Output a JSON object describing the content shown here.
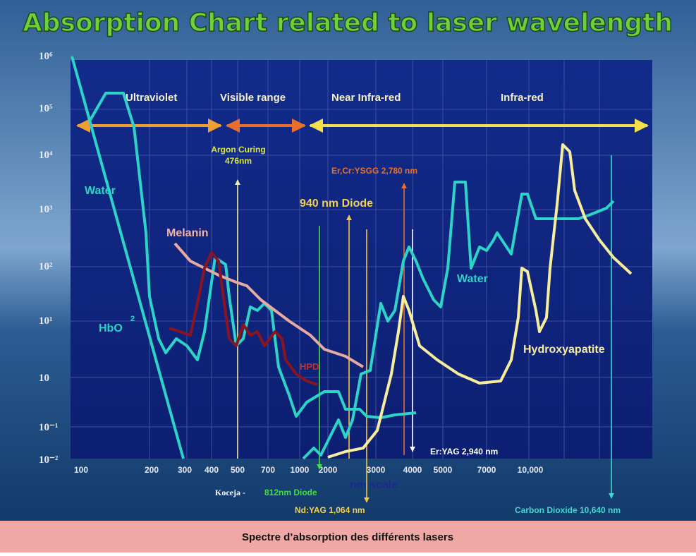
{
  "title": "Absorption Chart related to laser wavelength",
  "y_axis": {
    "labels": [
      "10⁶",
      "10⁵",
      "10⁴",
      "10³",
      "10²",
      "10¹",
      "10",
      "10⁻¹",
      "10⁻²"
    ]
  },
  "x_axis": {
    "labels": [
      "100",
      "200",
      "300",
      "400",
      "500",
      "700",
      "1000",
      "2000",
      "3000",
      "4000",
      "5000",
      "7000",
      "10,000"
    ],
    "unit": "nm scale"
  },
  "regions": [
    "Ultraviolet",
    "Visible range",
    "Near Infra-red",
    "Infra-red"
  ],
  "curves": {
    "water_uv": "Water",
    "hbo": "HbO",
    "hbo_sub": "2",
    "melanin": "Melanin",
    "hpd": "HPD",
    "water_ir": "Water",
    "hydroxyapatite": "Hydroxyapatite"
  },
  "lasers": {
    "argon": "Argon Curing",
    "argon_nm": "476nm",
    "ercr": "Er,Cr:YSGG 2,780 nm",
    "diode940": "940 nm Diode",
    "eryag": "Er:YAG 2,940 nm",
    "koceja": "Koceja -",
    "diode812": "812nm Diode",
    "ndyag": "Nd:YAG 1,064 nm",
    "co2": "Carbon Dioxide 10,640 nm"
  },
  "caption": "Spectre d’absorption des différents lasers"
}
